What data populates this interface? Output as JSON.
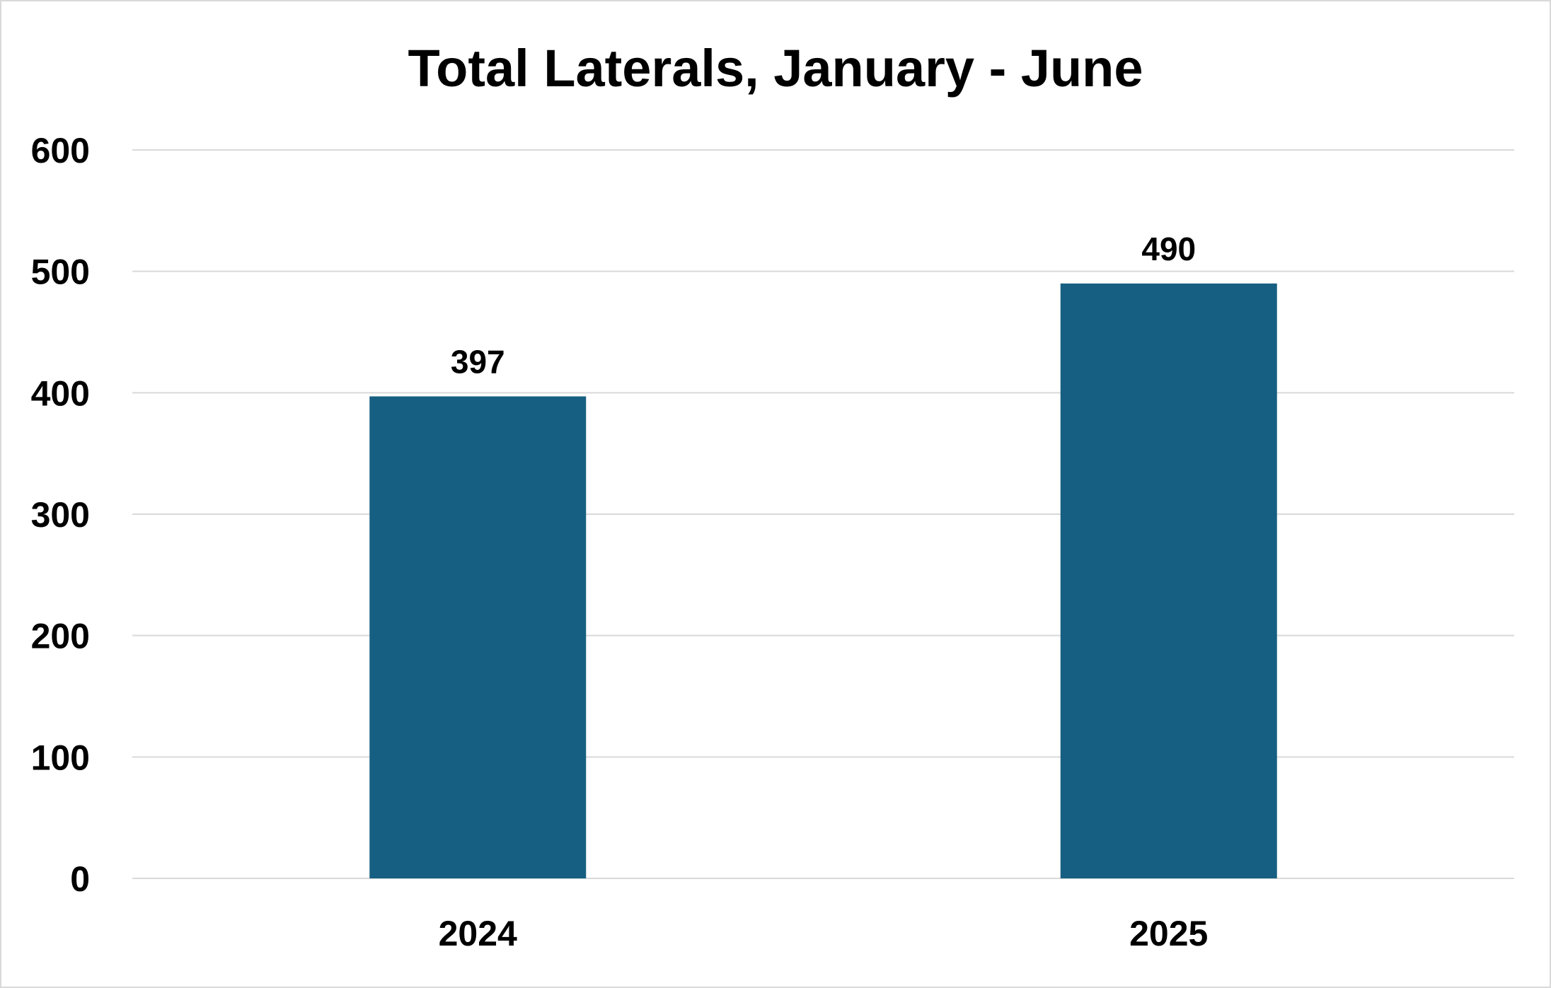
{
  "chart_data": {
    "type": "bar",
    "title": "Total Laterals, January - June",
    "categories": [
      "2024",
      "2025"
    ],
    "values": [
      397,
      490
    ],
    "data_labels": [
      "397",
      "490"
    ],
    "ylim": [
      0,
      600
    ],
    "yticks": [
      0,
      100,
      200,
      300,
      400,
      500,
      600
    ],
    "ytick_labels": [
      "0",
      "100",
      "200",
      "300",
      "400",
      "500",
      "600"
    ],
    "xlabel": "",
    "ylabel": "",
    "grid": true,
    "legend": "none",
    "colors": {
      "bar": "#175f82",
      "gridline": "#d9d9d9",
      "border": "#d9d9d9",
      "text": "#000000"
    }
  }
}
